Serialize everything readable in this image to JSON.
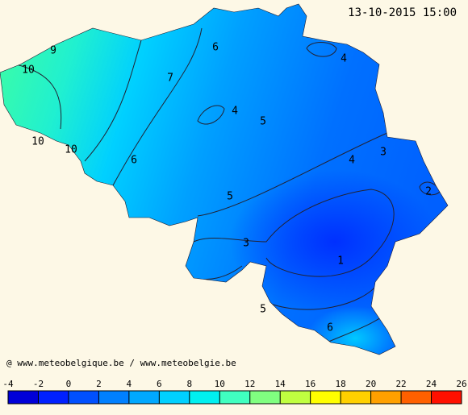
{
  "header": {
    "timestamp": "13-10-2015 15:00"
  },
  "credit": "@ www.meteobelgique.be / www.meteobelgie.be",
  "contour_labels": [
    "9",
    "10",
    "10",
    "10",
    "7",
    "6",
    "4",
    "4",
    "5",
    "6",
    "4",
    "3",
    "2",
    "5",
    "3",
    "1",
    "5",
    "6"
  ],
  "legend": {
    "ticks": [
      -4,
      -2,
      0,
      2,
      4,
      6,
      8,
      10,
      12,
      14,
      16,
      18,
      20,
      22,
      24,
      26
    ],
    "colors": [
      "#0000d8",
      "#0020ff",
      "#0050ff",
      "#0080ff",
      "#00a8ff",
      "#00d0ff",
      "#00f0f0",
      "#40ffc0",
      "#80ff80",
      "#c0ff40",
      "#ffff00",
      "#ffd000",
      "#ffa000",
      "#ff6000",
      "#ff1000"
    ]
  }
}
